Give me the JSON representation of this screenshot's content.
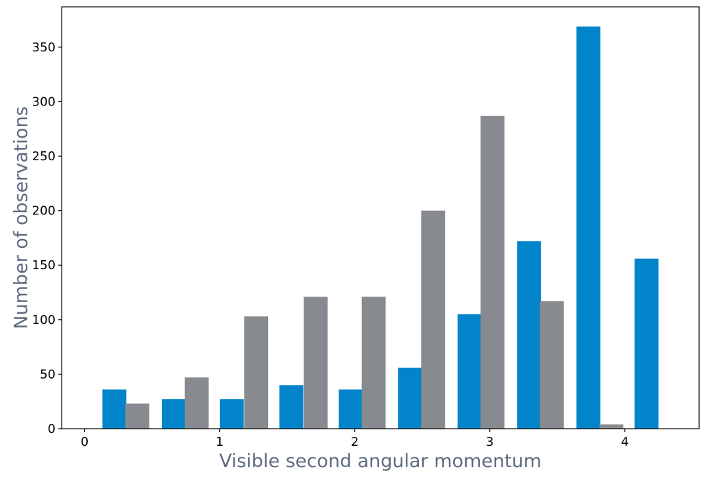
{
  "chart_data": {
    "type": "bar",
    "xlabel": "Visible second angular momentum",
    "ylabel": "Number of observations",
    "xlim": [
      -0.17,
      4.55
    ],
    "ylim": [
      0,
      387
    ],
    "xticks": [
      0,
      1,
      2,
      3,
      4
    ],
    "yticks": [
      0,
      50,
      100,
      150,
      200,
      250,
      300,
      350
    ],
    "grid": false,
    "series": [
      {
        "color": "#0184c9",
        "x": [
          0.22,
          0.66,
          1.09,
          1.53,
          1.97,
          2.41,
          2.85,
          3.29,
          3.73,
          4.16
        ],
        "values": [
          36,
          27,
          27,
          40,
          36,
          56,
          105,
          172,
          369,
          156
        ]
      },
      {
        "color": "#878a8e",
        "x": [
          0.39,
          0.83,
          1.27,
          1.71,
          2.14,
          2.58,
          3.02,
          3.46,
          3.9,
          4.34
        ],
        "values": [
          23,
          47,
          103,
          121,
          121,
          200,
          287,
          117,
          4,
          0
        ]
      }
    ]
  }
}
